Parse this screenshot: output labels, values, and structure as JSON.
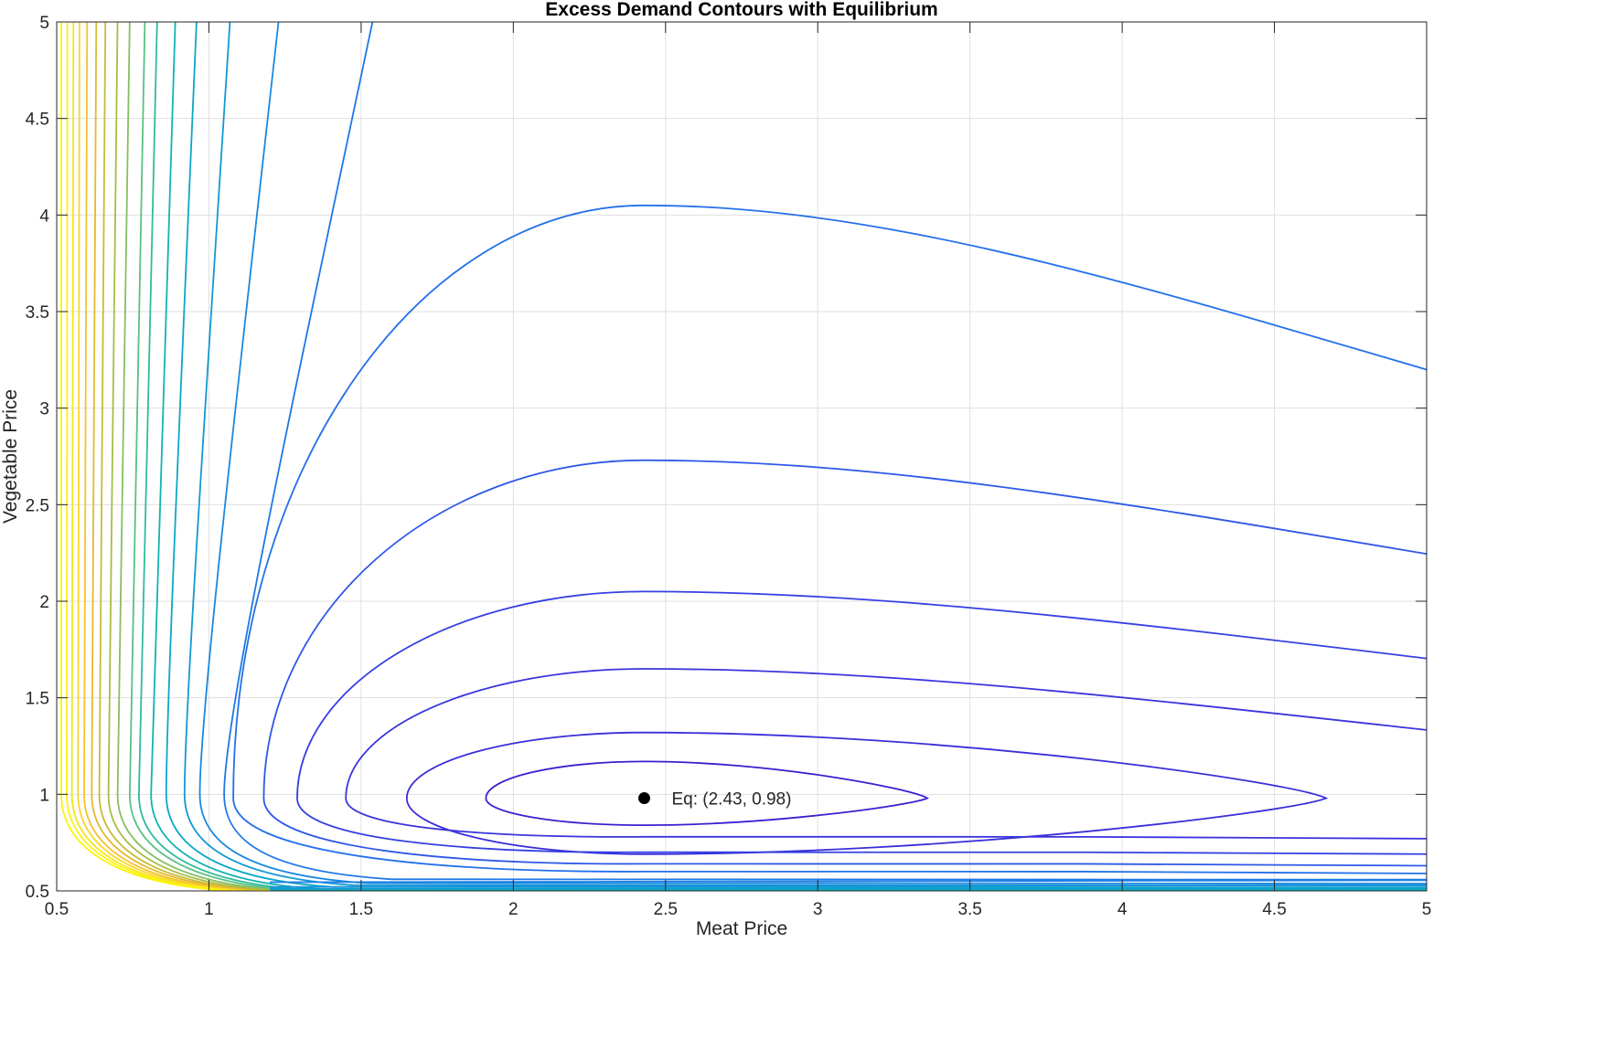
{
  "chart_data": {
    "type": "contour",
    "title": "Excess Demand Contours with Equilibrium",
    "xlabel": "Meat Price",
    "ylabel": "Vegetable Price",
    "xlim": [
      0.5,
      5
    ],
    "ylim": [
      0.5,
      5
    ],
    "xticks": [
      "0.5",
      "1",
      "1.5",
      "2",
      "2.5",
      "3",
      "3.5",
      "4",
      "4.5",
      "5"
    ],
    "yticks": [
      "0.5",
      "1",
      "1.5",
      "2",
      "2.5",
      "3",
      "3.5",
      "4",
      "4.5",
      "5"
    ],
    "grid": true,
    "box": true,
    "colormap": "parula",
    "equilibrium": {
      "x": 2.43,
      "y": 0.98,
      "label": "Eq: (2.43, 0.98)",
      "color": "#000000"
    },
    "closed_contours": [
      {
        "color": "#3a1fcf",
        "rx_left": 0.52,
        "rx_right": 0.93,
        "ry_top": 0.19,
        "ry_bottom": 0.14
      },
      {
        "color": "#3a2ed9",
        "rx_left": 0.78,
        "rx_right": 2.24,
        "ry_top": 0.34,
        "ry_bottom": 0.29
      }
    ],
    "open_contours": [
      {
        "color": "#3a34dd",
        "vertex_x": 1.45,
        "top_y": 1.65,
        "right_top_y": 1.33,
        "lower_y": 0.77
      },
      {
        "color": "#3540e2",
        "vertex_x": 1.29,
        "top_y": 2.05,
        "right_top_y": 1.7,
        "lower_y": 0.69
      },
      {
        "color": "#2d58e8",
        "vertex_x": 1.18,
        "top_y": 2.73,
        "right_top_y": 2.24,
        "lower_y": 0.63
      },
      {
        "color": "#2470ea",
        "vertex_x": 1.08,
        "top_y": 4.05,
        "right_top_y": 3.19,
        "lower_y": 0.59
      }
    ],
    "left_contours": [
      {
        "color": "#1e78e6",
        "x_top": 1.54,
        "x_mid": 1.05,
        "y_end": 0.56
      },
      {
        "color": "#1a88df",
        "x_top": 1.23,
        "x_mid": 0.97,
        "y_end": 0.54
      },
      {
        "color": "#1199d4",
        "x_top": 1.07,
        "x_mid": 0.92,
        "y_end": 0.53
      },
      {
        "color": "#0ba6c8",
        "x_top": 0.96,
        "x_mid": 0.86,
        "y_end": 0.52
      },
      {
        "color": "#12b2b3",
        "x_top": 0.89,
        "x_mid": 0.81,
        "y_end": 0.51
      },
      {
        "color": "#2fbb9c",
        "x_top": 0.83,
        "x_mid": 0.77,
        "y_end": 0.505
      },
      {
        "color": "#58c082",
        "x_top": 0.79,
        "x_mid": 0.74,
        "y_end": 0.503
      },
      {
        "color": "#84bf61",
        "x_top": 0.74,
        "x_mid": 0.7,
        "y_end": 0.502
      },
      {
        "color": "#a7bd45",
        "x_top": 0.7,
        "x_mid": 0.67,
        "y_end": 0.501
      },
      {
        "color": "#c7bb36",
        "x_top": 0.66,
        "x_mid": 0.64,
        "y_end": 0.5005
      },
      {
        "color": "#e3b92d",
        "x_top": 0.63,
        "x_mid": 0.615,
        "y_end": 0.5003
      },
      {
        "color": "#f6c22c",
        "x_top": 0.6,
        "x_mid": 0.59,
        "y_end": 0.5002
      },
      {
        "color": "#f9d62a",
        "x_top": 0.575,
        "x_mid": 0.57,
        "y_end": 0.5001
      },
      {
        "color": "#f5e51f",
        "x_top": 0.555,
        "x_mid": 0.55,
        "y_end": 0.5
      },
      {
        "color": "#f9f40e",
        "x_top": 0.535,
        "x_mid": 0.533,
        "y_end": 0.5
      },
      {
        "color": "#fbf20f",
        "x_top": 0.515,
        "x_mid": 0.515,
        "y_end": 0.5
      }
    ],
    "bottom_contours": [
      {
        "color": "#1e80e5",
        "y_left": 0.545,
        "y_right": 0.555
      },
      {
        "color": "#1a91dc",
        "y_left": 0.52,
        "y_right": 0.53
      },
      {
        "color": "#0f9fd0",
        "y_left": 0.51,
        "y_right": 0.515
      },
      {
        "color": "#0bacc3",
        "y_left": 0.503,
        "y_right": 0.506
      }
    ]
  }
}
